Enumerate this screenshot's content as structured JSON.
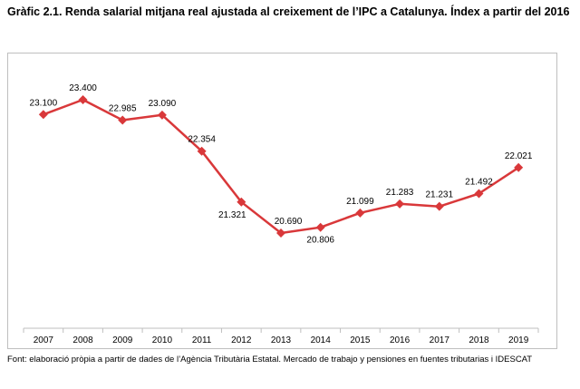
{
  "title": "Gràfic 2.1. Renda salarial mitjana real ajustada al creixement de l’IPC a Catalunya. Índex a partir del 2016",
  "source": "Font: elaboració pròpia a partir de dades de l’Agència Tributària Estatal. Mercado de trabajo y pensiones en fuentes tributarias i IDESCAT",
  "colors": {
    "series": "#d9383a",
    "axis": "#bfbfbf",
    "frame": "#bfbfbf"
  },
  "chart_data": {
    "type": "line",
    "x": [
      "2007",
      "2008",
      "2009",
      "2010",
      "2011",
      "2012",
      "2013",
      "2014",
      "2015",
      "2016",
      "2017",
      "2018",
      "2019"
    ],
    "series": [
      {
        "values": [
          23100,
          23400,
          22985,
          23090,
          22354,
          21321,
          20690,
          20806,
          21099,
          21283,
          21231,
          21492,
          22021
        ],
        "labels": [
          "23.100",
          "23.400",
          "22.985",
          "23.090",
          "22.354",
          "21.321",
          "20.690",
          "20.806",
          "21.099",
          "21.283",
          "21.231",
          "21.492",
          "22.021"
        ]
      }
    ],
    "marker": "diamond",
    "grid": false,
    "legend": "none"
  }
}
